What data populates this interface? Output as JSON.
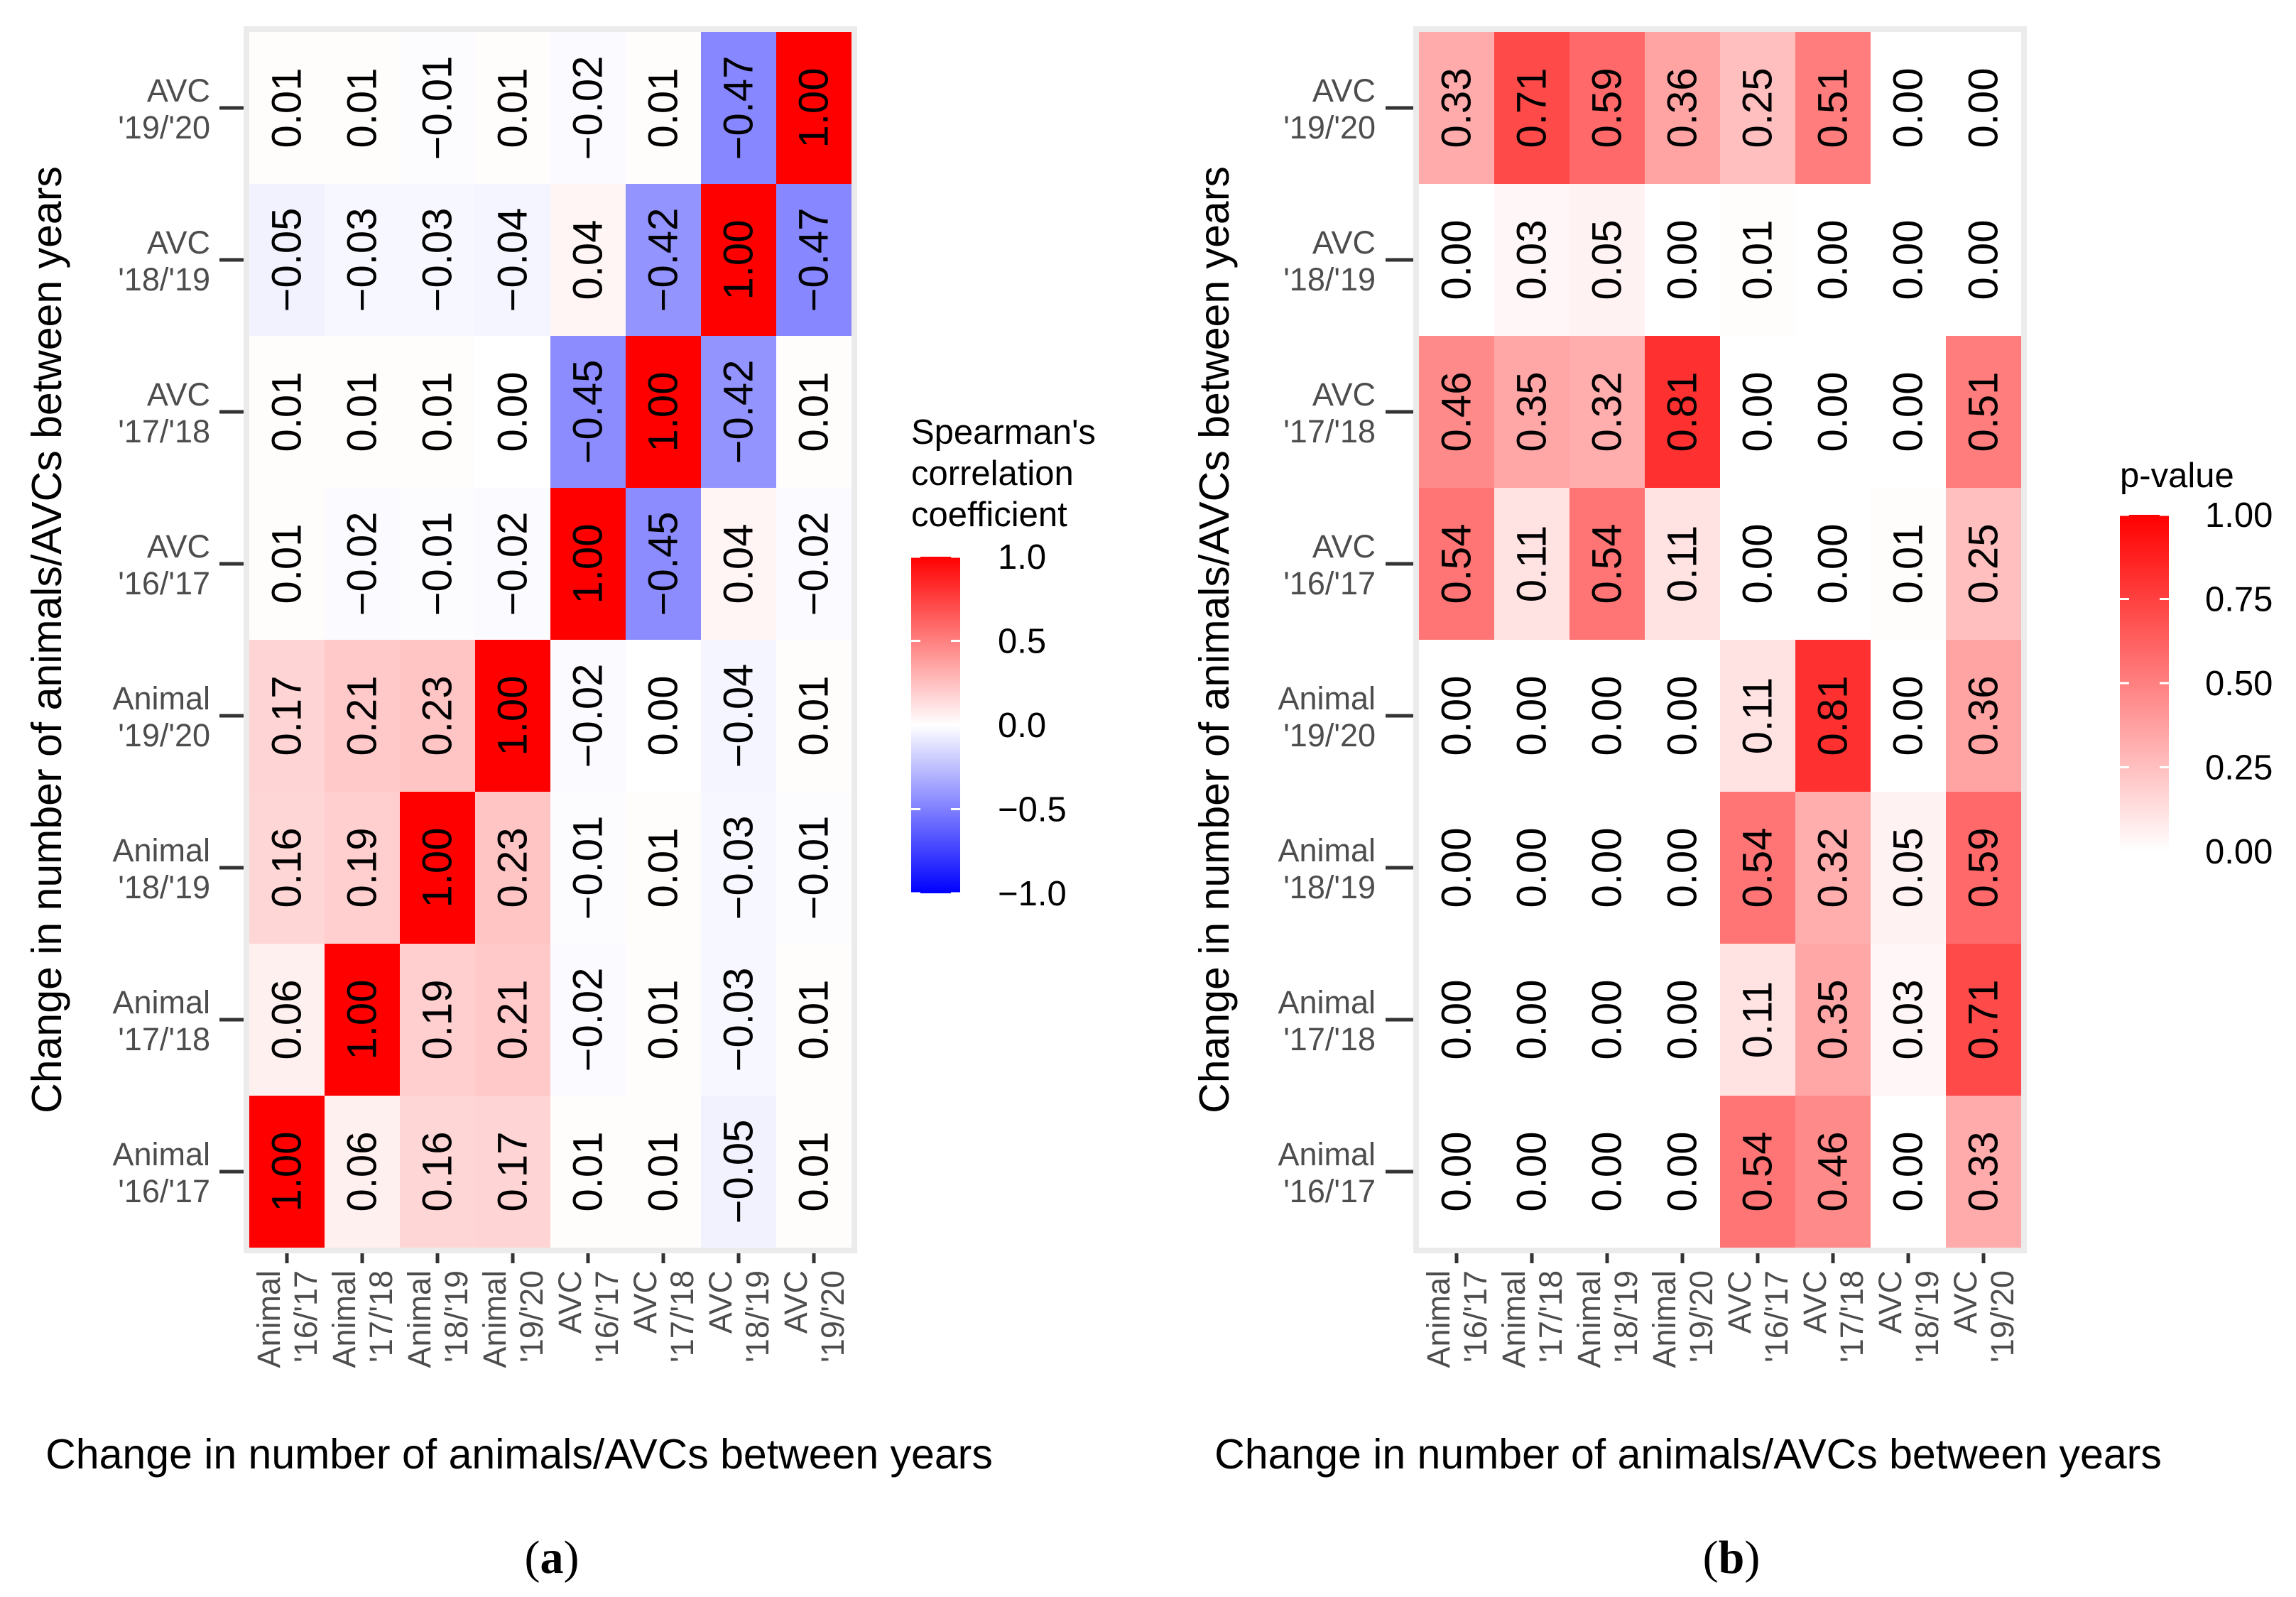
{
  "chart_data": [
    {
      "type": "heatmap",
      "panel": "(a)",
      "panel_letter": "a",
      "xlabel": "Change in number of animals/AVCs between years",
      "ylabel": "Change in number of animals/AVCs between years",
      "x_categories": [
        [
          "Animal",
          "'16/'17"
        ],
        [
          "Animal",
          "'17/'18"
        ],
        [
          "Animal",
          "'18/'19"
        ],
        [
          "Animal",
          "'19/'20"
        ],
        [
          "AVC",
          "'16/'17"
        ],
        [
          "AVC",
          "'17/'18"
        ],
        [
          "AVC",
          "'18/'19"
        ],
        [
          "AVC",
          "'19/'20"
        ]
      ],
      "y_categories_top_to_bottom": [
        [
          "AVC",
          "'19/'20"
        ],
        [
          "AVC",
          "'18/'19"
        ],
        [
          "AVC",
          "'17/'18"
        ],
        [
          "AVC",
          "'16/'17"
        ],
        [
          "Animal",
          "'19/'20"
        ],
        [
          "Animal",
          "'18/'19"
        ],
        [
          "Animal",
          "'17/'18"
        ],
        [
          "Animal",
          "'16/'17"
        ]
      ],
      "values": [
        [
          0.01,
          0.01,
          -0.01,
          0.01,
          -0.02,
          0.01,
          -0.47,
          1.0
        ],
        [
          -0.05,
          -0.03,
          -0.03,
          -0.04,
          0.04,
          -0.42,
          1.0,
          -0.47
        ],
        [
          0.01,
          0.01,
          0.01,
          0.0,
          -0.45,
          1.0,
          -0.42,
          0.01
        ],
        [
          0.01,
          -0.02,
          -0.01,
          -0.02,
          1.0,
          -0.45,
          0.04,
          -0.02
        ],
        [
          0.17,
          0.21,
          0.23,
          1.0,
          -0.02,
          0.0,
          -0.04,
          0.01
        ],
        [
          0.16,
          0.19,
          1.0,
          0.23,
          -0.01,
          0.01,
          -0.03,
          -0.01
        ],
        [
          0.06,
          1.0,
          0.19,
          0.21,
          -0.02,
          0.01,
          -0.03,
          0.01
        ],
        [
          1.0,
          0.06,
          0.16,
          0.17,
          0.01,
          0.01,
          -0.05,
          0.01
        ]
      ],
      "legend": {
        "title_lines": [
          "Spearman's",
          "correlation",
          "coefficient"
        ],
        "range": [
          -1,
          1
        ],
        "ticks": [
          1.0,
          0.5,
          0.0,
          -0.5,
          -1.0
        ],
        "tick_labels": [
          "1.0",
          "0.5",
          "0.0",
          "−0.5",
          "−1.0"
        ],
        "colors": {
          "low": "#0000ff",
          "mid": "#ffffff",
          "high": "#ff0000"
        }
      }
    },
    {
      "type": "heatmap",
      "panel": "(b)",
      "panel_letter": "b",
      "xlabel": "Change in number of animals/AVCs between years",
      "ylabel": "Change in number of animals/AVCs between years",
      "x_categories": [
        [
          "Animal",
          "'16/'17"
        ],
        [
          "Animal",
          "'17/'18"
        ],
        [
          "Animal",
          "'18/'19"
        ],
        [
          "Animal",
          "'19/'20"
        ],
        [
          "AVC",
          "'16/'17"
        ],
        [
          "AVC",
          "'17/'18"
        ],
        [
          "AVC",
          "'18/'19"
        ],
        [
          "AVC",
          "'19/'20"
        ]
      ],
      "y_categories_top_to_bottom": [
        [
          "AVC",
          "'19/'20"
        ],
        [
          "AVC",
          "'18/'19"
        ],
        [
          "AVC",
          "'17/'18"
        ],
        [
          "AVC",
          "'16/'17"
        ],
        [
          "Animal",
          "'19/'20"
        ],
        [
          "Animal",
          "'18/'19"
        ],
        [
          "Animal",
          "'17/'18"
        ],
        [
          "Animal",
          "'16/'17"
        ]
      ],
      "values": [
        [
          0.33,
          0.71,
          0.59,
          0.36,
          0.25,
          0.51,
          0.0,
          0.0
        ],
        [
          0.0,
          0.03,
          0.05,
          0.0,
          0.01,
          0.0,
          0.0,
          0.0
        ],
        [
          0.46,
          0.35,
          0.32,
          0.81,
          0.0,
          0.0,
          0.0,
          0.51
        ],
        [
          0.54,
          0.11,
          0.54,
          0.11,
          0.0,
          0.0,
          0.01,
          0.25
        ],
        [
          0.0,
          0.0,
          0.0,
          0.0,
          0.11,
          0.81,
          0.0,
          0.36
        ],
        [
          0.0,
          0.0,
          0.0,
          0.0,
          0.54,
          0.32,
          0.05,
          0.59
        ],
        [
          0.0,
          0.0,
          0.0,
          0.0,
          0.11,
          0.35,
          0.03,
          0.71
        ],
        [
          0.0,
          0.0,
          0.0,
          0.0,
          0.54,
          0.46,
          0.0,
          0.33
        ]
      ],
      "legend": {
        "title_lines": [
          "p-value"
        ],
        "range": [
          0,
          1
        ],
        "ticks": [
          1.0,
          0.75,
          0.5,
          0.25,
          0.0
        ],
        "tick_labels": [
          "1.00",
          "0.75",
          "0.50",
          "0.25",
          "0.00"
        ],
        "colors": {
          "low": "#ffffff",
          "high": "#ff0000"
        }
      }
    }
  ]
}
